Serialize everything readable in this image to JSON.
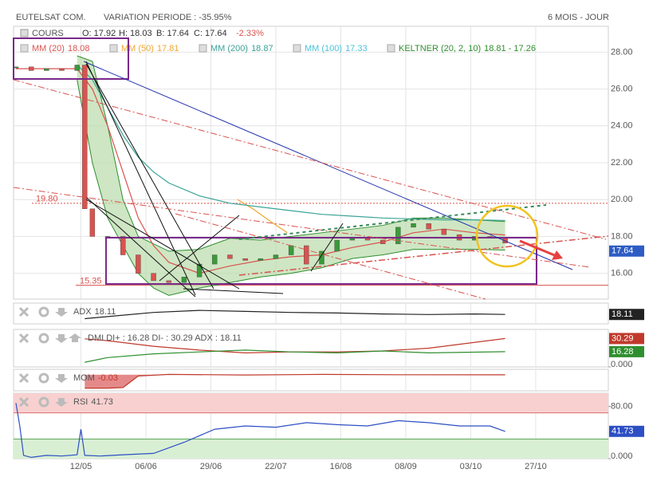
{
  "header": {
    "title": "EUTELSAT COM.",
    "variation": "VARIATION PERIODE : -35.95%",
    "period": "6 MOIS - JOUR"
  },
  "chart_data": [
    {
      "type": "candlestick",
      "xlim": [
        0,
        155
      ],
      "xticks": [
        {
          "value": 17,
          "label": "12/05"
        },
        {
          "value": 34,
          "label": "06/06"
        },
        {
          "value": 51,
          "label": "29/06"
        },
        {
          "value": 68,
          "label": "22/07"
        },
        {
          "value": 85,
          "label": "16/08"
        },
        {
          "value": 102,
          "label": "08/09"
        },
        {
          "value": 119,
          "label": "03/10"
        },
        {
          "value": 136,
          "label": "27/10"
        }
      ],
      "ylim": [
        14.6,
        29.4
      ],
      "yticks": [
        {
          "value": 16,
          "label": "16.00"
        },
        {
          "value": 18,
          "label": "18.00"
        },
        {
          "value": 20,
          "label": "20.00"
        },
        {
          "value": 22,
          "label": "22.00"
        },
        {
          "value": 24,
          "label": "24.00"
        },
        {
          "value": 26,
          "label": "26.00"
        },
        {
          "value": 28,
          "label": "28.00"
        }
      ],
      "grid": true,
      "quote": {
        "open": "O: 17.92",
        "high": "H: 18.03",
        "low": "B: 17.64",
        "close": "C: 17.64",
        "change": "-2.33%"
      },
      "series": [
        {
          "name": "COURS",
          "up_color": "#3a9a3a",
          "down_color": "#d9534f",
          "color": "#2d5cc4",
          "x": [
            0,
            4,
            8,
            12,
            16,
            18,
            20,
            24,
            28,
            32,
            36,
            40,
            44,
            48,
            52,
            56,
            60,
            64,
            68,
            72,
            76,
            80,
            84,
            88,
            92,
            96,
            100,
            104,
            108,
            112,
            116,
            120,
            124,
            128
          ],
          "values": [
            27.2,
            27.0,
            27.1,
            27.0,
            27.3,
            19.5,
            18.0,
            18.0,
            17.0,
            16.0,
            15.6,
            15.5,
            15.8,
            16.5,
            17.0,
            16.8,
            16.7,
            16.8,
            17.0,
            17.5,
            16.5,
            17.2,
            17.8,
            17.9,
            17.8,
            17.6,
            18.5,
            18.7,
            18.4,
            18.1,
            17.8,
            18.0,
            17.9,
            17.64
          ]
        },
        {
          "name": "MM (20)",
          "legend_value": 18.08,
          "color": "#d9534f",
          "x": [
            0,
            8,
            16,
            20,
            24,
            28,
            32,
            36,
            40,
            48,
            56,
            64,
            72,
            80,
            88,
            96,
            104,
            112,
            120,
            128
          ],
          "values": [
            27.1,
            27.1,
            27.1,
            26.0,
            24.0,
            21.5,
            19.0,
            17.5,
            16.6,
            16.0,
            16.4,
            16.7,
            16.9,
            17.0,
            17.4,
            17.7,
            18.2,
            18.4,
            18.2,
            18.08
          ]
        },
        {
          "name": "MM (50)",
          "legend_value": 17.81,
          "color": "#f0a830",
          "x": [
            58,
            62,
            66,
            71
          ],
          "values": [
            20.0,
            19.5,
            18.9,
            18.2
          ]
        },
        {
          "name": "MM (200)",
          "legend_value": 18.87,
          "color": "#3aa398",
          "x": [
            16,
            20,
            24,
            28,
            32,
            36,
            40,
            48,
            56,
            64,
            72,
            80,
            88,
            96,
            104,
            112,
            120,
            128
          ],
          "values": [
            27.3,
            26.5,
            25.0,
            23.5,
            22.3,
            21.5,
            20.9,
            20.2,
            19.8,
            19.6,
            19.4,
            19.2,
            19.1,
            19.0,
            18.95,
            18.9,
            18.9,
            18.87
          ]
        },
        {
          "name": "MM (100)",
          "legend_value": 17.33,
          "color": "#4cc3d9",
          "x": [],
          "values": []
        }
      ],
      "keltner": {
        "name": "KELTNER (20, 2, 10)",
        "legend_value": "18.81 - 17.26",
        "color": "#2f8f2f",
        "fill": "#b9dcaa",
        "x": [
          16,
          20,
          24,
          28,
          32,
          36,
          40,
          48,
          56,
          64,
          72,
          80,
          88,
          96,
          104,
          112,
          120,
          128
        ],
        "upper": [
          27.8,
          27.5,
          24,
          20,
          18,
          17.6,
          17.2,
          17.3,
          17.9,
          17.8,
          18.0,
          18.2,
          18.4,
          18.6,
          19.0,
          19.0,
          18.9,
          18.81
        ],
        "lower": [
          26.5,
          22,
          19,
          17.5,
          16,
          15.2,
          14.8,
          15.2,
          15.5,
          15.8,
          16.0,
          16.3,
          16.8,
          17.0,
          17.3,
          17.3,
          17.3,
          17.26
        ]
      },
      "levels": [
        {
          "value": 19.8,
          "label": "19.80",
          "style": "dotted"
        },
        {
          "value": 15.35,
          "label": "15.35",
          "style": "solid"
        }
      ]
    },
    {
      "type": "line",
      "name": "ADX",
      "ylim": [
        0,
        40
      ],
      "series": [
        {
          "color": "#222",
          "tag": true,
          "x": [
            18,
            24,
            36,
            48,
            60,
            72,
            84,
            96,
            108,
            120,
            128
          ],
          "values": [
            10,
            14,
            22,
            26,
            24,
            22,
            21,
            19,
            18,
            19,
            18.11
          ]
        }
      ]
    },
    {
      "type": "line",
      "title": "DMI DI+ : 16.28 DI- : 30.29 ADX : 18.11",
      "ylim": [
        0,
        40
      ],
      "yticks": [
        {
          "value": 0,
          "label": "0.000"
        }
      ],
      "series": [
        {
          "color": "#c0392b",
          "tag": true,
          "x": [
            18,
            24,
            36,
            48,
            60,
            72,
            84,
            96,
            108,
            128
          ],
          "values": [
            30,
            28,
            22,
            18,
            15,
            16,
            16,
            17,
            20,
            30.29
          ]
        },
        {
          "color": "#2f8f2f",
          "tag": true,
          "x": [
            18,
            24,
            36,
            48,
            60,
            72,
            84,
            96,
            108,
            128
          ],
          "values": [
            5,
            10,
            14,
            16,
            18,
            16,
            15,
            17,
            15,
            16.28
          ]
        }
      ]
    },
    {
      "type": "area",
      "name": "MOM",
      "ylim": [
        -6,
        2
      ],
      "series": [
        {
          "color": "#c0392b",
          "fill": "#e58a8a",
          "x": [
            18,
            20,
            24,
            28,
            32,
            40,
            60,
            80,
            100,
            128
          ],
          "values": [
            -5,
            -5,
            -5,
            -4.8,
            -0.5,
            0.1,
            -0.1,
            0.1,
            0.0,
            -0.03
          ]
        }
      ]
    },
    {
      "type": "line",
      "name": "RSI",
      "ylim": [
        0,
        100
      ],
      "yticks": [
        {
          "value": 80,
          "label": "80.00"
        },
        {
          "value": 0,
          "label": "0.000"
        }
      ],
      "zones": [
        {
          "from": 70,
          "to": 100,
          "color": "#f8d0d0",
          "line": "#e07070"
        },
        {
          "from": 0,
          "to": 30,
          "color": "#d9efd4",
          "line": "#5aa65a"
        }
      ],
      "series": [
        {
          "color": "#2d4fc4",
          "tag": true,
          "x": [
            0,
            1,
            2,
            4,
            8,
            12,
            16,
            17,
            18,
            22,
            28,
            36,
            44,
            52,
            60,
            68,
            76,
            84,
            92,
            100,
            108,
            116,
            124,
            128
          ],
          "values": [
            85,
            50,
            5,
            2,
            5,
            4,
            6,
            45,
            5,
            4,
            6,
            8,
            25,
            45,
            50,
            48,
            55,
            52,
            50,
            58,
            55,
            50,
            50,
            41.73
          ]
        }
      ]
    }
  ]
}
